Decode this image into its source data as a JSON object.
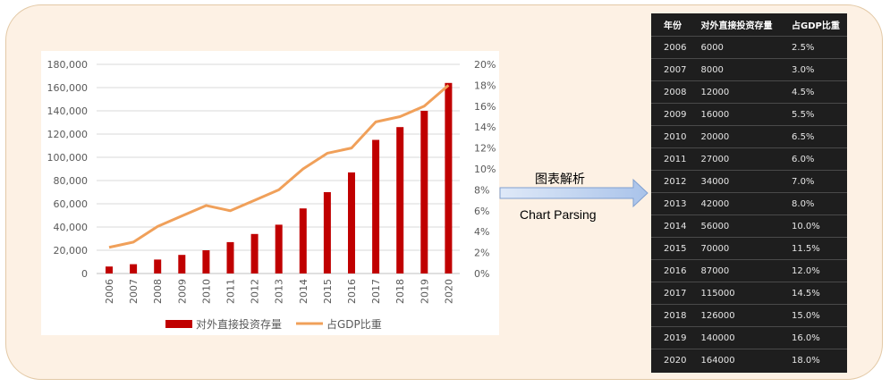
{
  "chart_data": {
    "type": "bar+line",
    "categories": [
      "2006",
      "2007",
      "2008",
      "2009",
      "2010",
      "2011",
      "2012",
      "2013",
      "2014",
      "2015",
      "2016",
      "2017",
      "2018",
      "2019",
      "2020"
    ],
    "series": [
      {
        "name": "对外直接投资存量",
        "type": "bar",
        "axis": "left",
        "color": "#c00000",
        "values": [
          6000,
          8000,
          12000,
          16000,
          20000,
          27000,
          34000,
          42000,
          56000,
          70000,
          87000,
          115000,
          126000,
          140000,
          164000
        ]
      },
      {
        "name": "占GDP比重",
        "type": "line",
        "axis": "right",
        "color": "#f0a05a",
        "values": [
          2.5,
          3.0,
          4.5,
          5.5,
          6.5,
          6.0,
          7.0,
          8.0,
          10.0,
          11.5,
          12.0,
          14.5,
          15.0,
          16.0,
          18.0
        ]
      }
    ],
    "left_axis": {
      "min": 0,
      "max": 180000,
      "ticks": [
        "0",
        "20,000",
        "40,000",
        "60,000",
        "80,000",
        "100,000",
        "120,000",
        "140,000",
        "160,000",
        "180,000"
      ]
    },
    "right_axis": {
      "min": 0,
      "max": 20,
      "ticks": [
        "0%",
        "2%",
        "4%",
        "6%",
        "8%",
        "10%",
        "12%",
        "14%",
        "16%",
        "18%",
        "20%"
      ]
    },
    "legend_position": "bottom"
  },
  "arrow": {
    "label_cn": "图表解析",
    "label_en": "Chart Parsing"
  },
  "table": {
    "headers": [
      "年份",
      "对外直接投资存量",
      "占GDP比重"
    ],
    "rows": [
      [
        "2006",
        "6000",
        "2.5%"
      ],
      [
        "2007",
        "8000",
        "3.0%"
      ],
      [
        "2008",
        "12000",
        "4.5%"
      ],
      [
        "2009",
        "16000",
        "5.5%"
      ],
      [
        "2010",
        "20000",
        "6.5%"
      ],
      [
        "2011",
        "27000",
        "6.0%"
      ],
      [
        "2012",
        "34000",
        "7.0%"
      ],
      [
        "2013",
        "42000",
        "8.0%"
      ],
      [
        "2014",
        "56000",
        "10.0%"
      ],
      [
        "2015",
        "70000",
        "11.5%"
      ],
      [
        "2016",
        "87000",
        "12.0%"
      ],
      [
        "2017",
        "115000",
        "14.5%"
      ],
      [
        "2018",
        "126000",
        "15.0%"
      ],
      [
        "2019",
        "140000",
        "16.0%"
      ],
      [
        "2020",
        "164000",
        "18.0%"
      ]
    ]
  }
}
